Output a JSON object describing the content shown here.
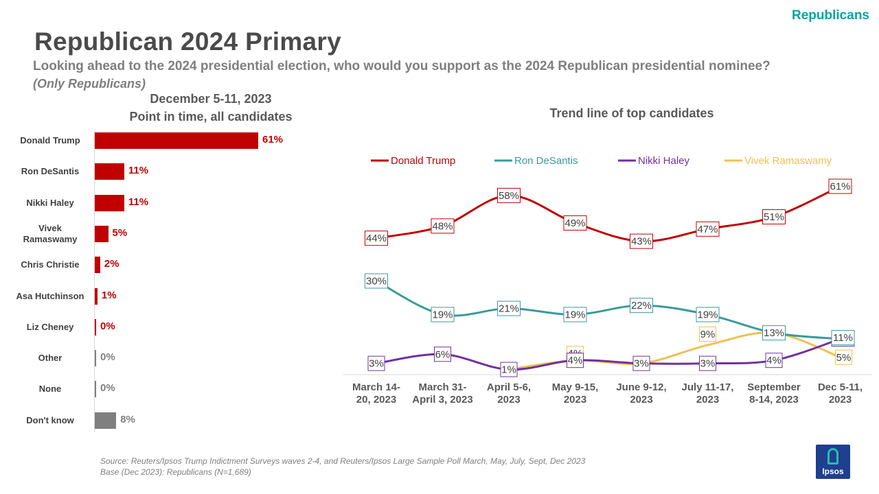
{
  "header": {
    "tag": "Republicans",
    "title": "Republican 2024 Primary",
    "question": "Looking ahead to the 2024 presidential election, who would you support as the 2024 Republican presidential nominee?",
    "qualifier": "(Only Republicans)"
  },
  "left_panel": {
    "date": "December 5-11, 2023",
    "subtitle": "Point in time, all candidates"
  },
  "right_panel": {
    "title": "Trend line of top candidates"
  },
  "footer": {
    "source": "Source: Reuters/Ipsos Trump Indictment Surveys waves  2-4, and Reuters/Ipsos Large  Sample Poll March,  May,  July, Sept, Dec 2023",
    "base": "Base (Dec 2023): Republicans (N=1,689)",
    "logo_text": "Ipsos"
  },
  "colors": {
    "accent_red": "#c00000",
    "gray": "#7f7f7f",
    "trump": "#c00000",
    "desantis": "#3a9a9a",
    "haley": "#7030a0",
    "ramaswamy": "#f0c050",
    "tag": "#00a6a0"
  },
  "chart_data": [
    {
      "type": "bar",
      "orientation": "horizontal",
      "title": "December 5-11, 2023",
      "subtitle": "Point in time, all candidates",
      "categories": [
        "Donald Trump",
        "Ron DeSantis",
        "Nikki Haley",
        "Vivek Ramaswamy",
        "Chris Christie",
        "Asa Hutchinson",
        "Liz Cheney",
        "Other",
        "None",
        "Don't know"
      ],
      "values": [
        61,
        11,
        11,
        5,
        2,
        1,
        0,
        0,
        0,
        8
      ],
      "labels": [
        "61%",
        "11%",
        "11%",
        "5%",
        "2%",
        "1%",
        "0%",
        "0%",
        "0%",
        "8%"
      ],
      "bar_colors": [
        "#c00000",
        "#c00000",
        "#c00000",
        "#c00000",
        "#c00000",
        "#c00000",
        "#c00000",
        "#7f7f7f",
        "#7f7f7f",
        "#7f7f7f"
      ],
      "grid": false
    },
    {
      "type": "line",
      "title": "Trend line of top candidates",
      "x": [
        "March 14-20, 2023",
        "March 31-April 3, 2023",
        "April 5-6, 2023",
        "May 9-15, 2023",
        "June 9-12, 2023",
        "July 11-17, 2023",
        "September 8-14, 2023",
        "Dec 5-11, 2023"
      ],
      "ylim": [
        0,
        70
      ],
      "legend": "top",
      "grid": false,
      "series": [
        {
          "name": "Donald Trump",
          "color": "#c00000",
          "values": [
            44,
            48,
            58,
            49,
            43,
            47,
            51,
            61
          ]
        },
        {
          "name": "Ron DeSantis",
          "color": "#3a9a9a",
          "values": [
            30,
            19,
            21,
            19,
            22,
            19,
            13,
            11
          ]
        },
        {
          "name": "Nikki Haley",
          "color": "#7030a0",
          "values": [
            3,
            6,
            1,
            4,
            3,
            3,
            4,
            11
          ]
        },
        {
          "name": "Vivek Ramaswamy",
          "color": "#f0c050",
          "values": [
            null,
            null,
            1,
            4,
            3,
            9,
            13,
            5
          ]
        }
      ]
    }
  ]
}
